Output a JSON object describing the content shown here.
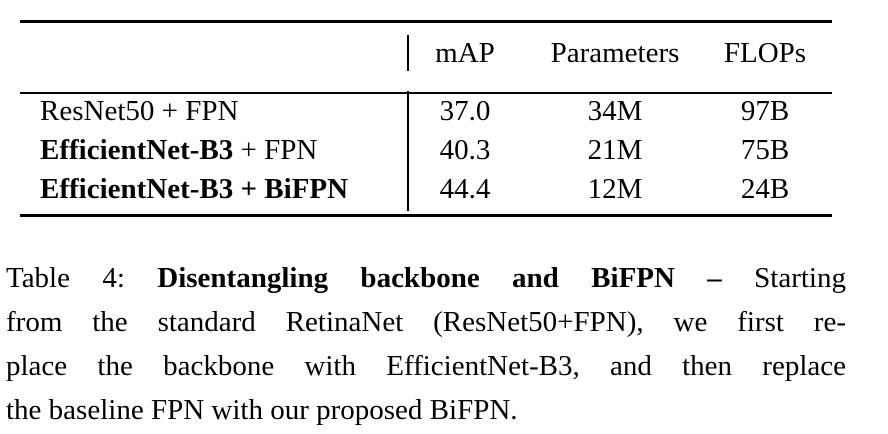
{
  "table": {
    "headers": {
      "model": "",
      "map": "mAP",
      "parameters": "Parameters",
      "flops": "FLOPs"
    },
    "rows": [
      {
        "model_bold": "",
        "model_rest": "ResNet50 + FPN",
        "map": "37.0",
        "parameters": "34M",
        "flops": "97B"
      },
      {
        "model_bold": "EfficientNet-B3",
        "model_rest": " + FPN",
        "map": "40.3",
        "parameters": "21M",
        "flops": "75B"
      },
      {
        "model_bold": "EfficientNet-B3 + BiFPN",
        "model_rest": "",
        "map": "44.4",
        "parameters": "12M",
        "flops": "24B"
      }
    ]
  },
  "caption": {
    "label": "Table 4: ",
    "title": "Disentangling backbone and BiFPN –",
    "line1_rest": " Starting",
    "line2": "from the standard RetinaNet (ResNet50+FPN), we first re-",
    "line3": "place the backbone with EfficientNet-B3, and then replace",
    "line4": "the baseline FPN with our proposed BiFPN."
  }
}
